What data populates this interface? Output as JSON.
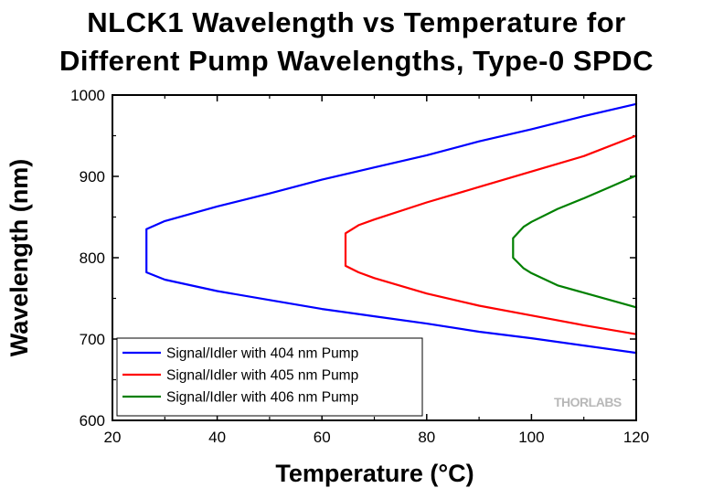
{
  "chart_data": {
    "type": "line",
    "title_lines": [
      "NLCK1 Wavelength vs Temperature for",
      "Different Pump Wavelengths, Type-0 SPDC"
    ],
    "xlabel": "Temperature (°C)",
    "ylabel": "Wavelength (nm)",
    "xlim": [
      20,
      120
    ],
    "ylim": [
      600,
      1000
    ],
    "x_ticks": [
      20,
      40,
      60,
      80,
      100,
      120
    ],
    "y_ticks": [
      600,
      700,
      800,
      900,
      1000
    ],
    "legend_position": "bottom-left",
    "series": [
      {
        "name": "Signal/Idler with 404 nm Pump",
        "color": "#0000ff",
        "degenerate_temperature": 26.5,
        "degenerate_wavelength": 808,
        "points": [
          {
            "x": 26.5,
            "signal": 782,
            "idler": 835
          },
          {
            "x": 30,
            "signal": 773,
            "idler": 845
          },
          {
            "x": 40,
            "signal": 759,
            "idler": 863
          },
          {
            "x": 50,
            "signal": 748,
            "idler": 879
          },
          {
            "x": 60,
            "signal": 737,
            "idler": 896
          },
          {
            "x": 70,
            "signal": 728,
            "idler": 911
          },
          {
            "x": 80,
            "signal": 719,
            "idler": 926
          },
          {
            "x": 90,
            "signal": 709,
            "idler": 943
          },
          {
            "x": 100,
            "signal": 701,
            "idler": 958
          },
          {
            "x": 110,
            "signal": 692,
            "idler": 974
          },
          {
            "x": 120,
            "signal": 683,
            "idler": 989
          }
        ]
      },
      {
        "name": "Signal/Idler with 405 nm Pump",
        "color": "#ff0000",
        "degenerate_temperature": 64.5,
        "degenerate_wavelength": 810,
        "points": [
          {
            "x": 64.5,
            "signal": 790,
            "idler": 830
          },
          {
            "x": 67,
            "signal": 782,
            "idler": 840
          },
          {
            "x": 70,
            "signal": 775,
            "idler": 847
          },
          {
            "x": 80,
            "signal": 756,
            "idler": 868
          },
          {
            "x": 90,
            "signal": 741,
            "idler": 887
          },
          {
            "x": 100,
            "signal": 729,
            "idler": 906
          },
          {
            "x": 110,
            "signal": 717,
            "idler": 925
          },
          {
            "x": 120,
            "signal": 706,
            "idler": 950
          }
        ]
      },
      {
        "name": "Signal/Idler with 406 nm Pump",
        "color": "#008000",
        "degenerate_temperature": 96.5,
        "degenerate_wavelength": 812,
        "points": [
          {
            "x": 96.5,
            "signal": 800,
            "idler": 824
          },
          {
            "x": 98.5,
            "signal": 787,
            "idler": 838
          },
          {
            "x": 100,
            "signal": 781,
            "idler": 844
          },
          {
            "x": 105,
            "signal": 766,
            "idler": 860
          },
          {
            "x": 110,
            "signal": 757,
            "idler": 873
          },
          {
            "x": 115,
            "signal": 748,
            "idler": 887
          },
          {
            "x": 120,
            "signal": 739,
            "idler": 901
          }
        ]
      }
    ]
  },
  "watermark": "THORLABS"
}
